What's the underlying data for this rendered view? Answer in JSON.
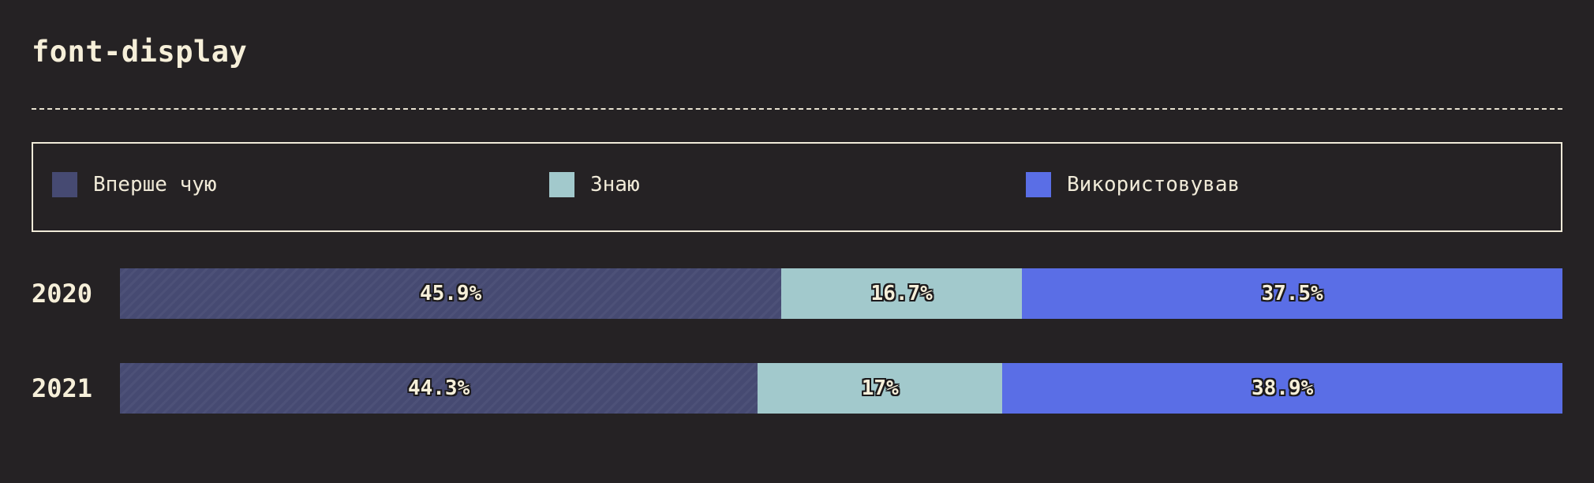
{
  "title": "font-display",
  "chart_data": {
    "type": "bar",
    "stacked": true,
    "orientation": "horizontal",
    "categories": [
      "2020",
      "2021"
    ],
    "series": [
      {
        "name": "Вперше чую",
        "values": [
          45.9,
          44.3
        ],
        "labels": [
          "45.9%",
          "44.3%"
        ],
        "color": "#464a72"
      },
      {
        "name": "Знаю",
        "values": [
          16.7,
          17.0
        ],
        "labels": [
          "16.7%",
          "17%"
        ],
        "color": "#a2c9cc"
      },
      {
        "name": "Використовував",
        "values": [
          37.5,
          38.9
        ],
        "labels": [
          "37.5%",
          "38.9%"
        ],
        "color": "#5a6ee6"
      }
    ],
    "legend_position": "top",
    "unit": "%"
  }
}
